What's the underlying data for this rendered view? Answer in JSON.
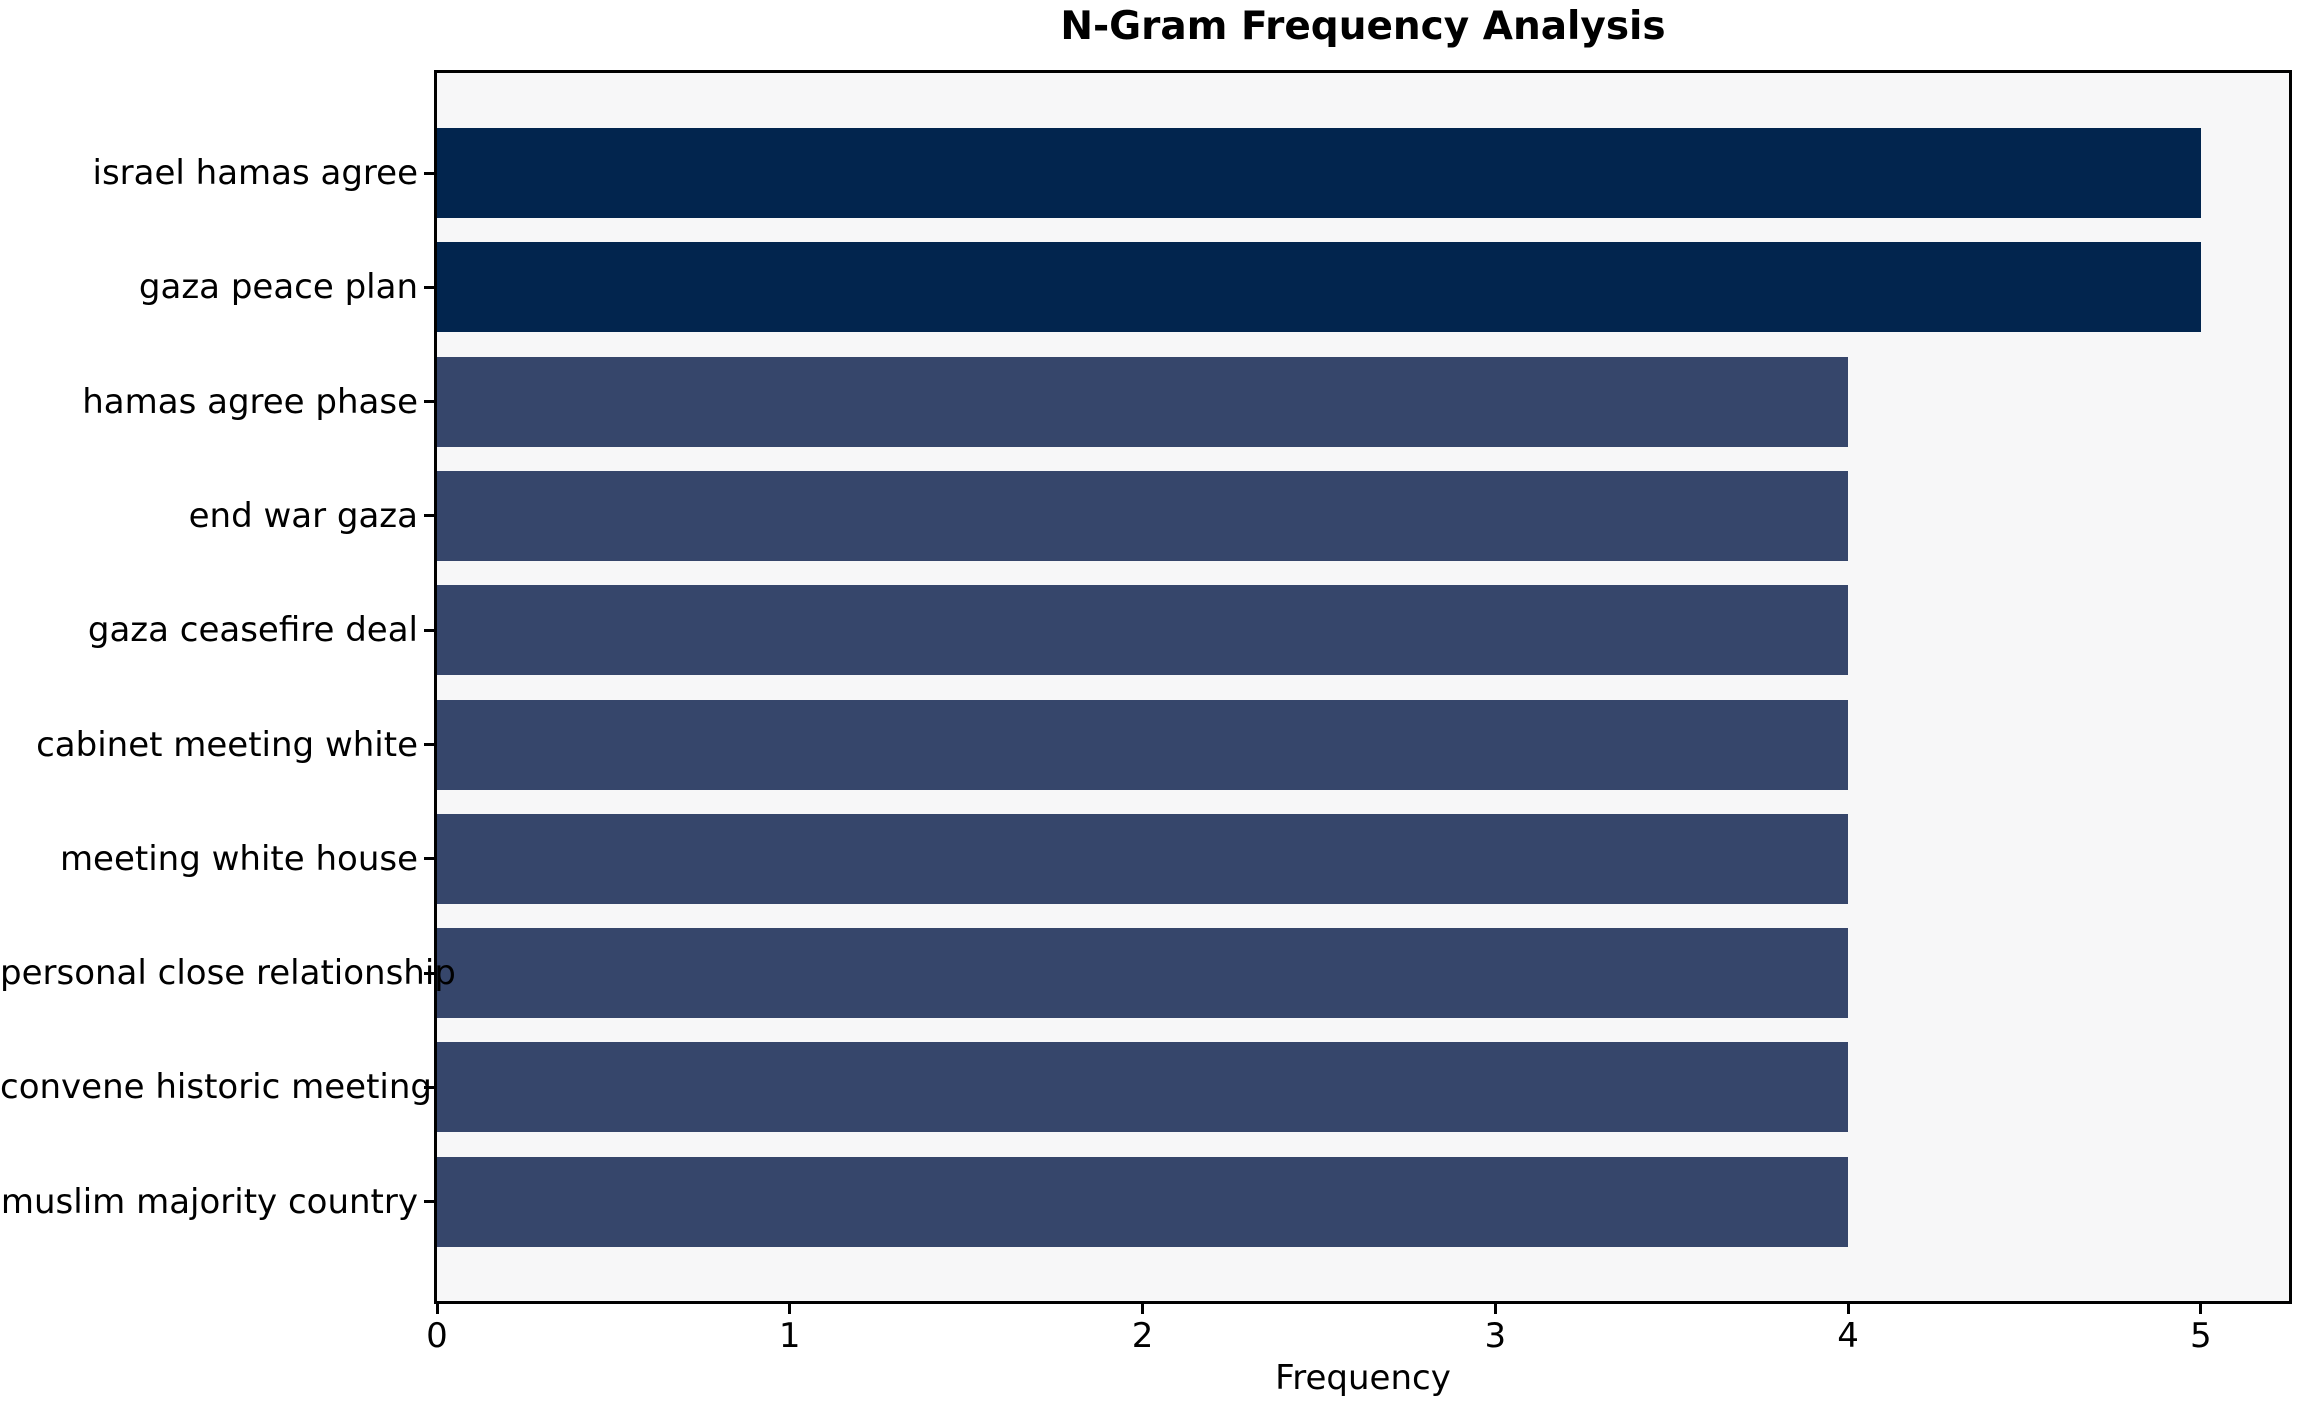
{
  "chart_data": {
    "type": "bar",
    "orientation": "horizontal",
    "title": "N-Gram Frequency Analysis",
    "xlabel": "Frequency",
    "ylabel": "",
    "categories": [
      "israel hamas agree",
      "gaza peace plan",
      "hamas agree phase",
      "end war gaza",
      "gaza ceasefire deal",
      "cabinet meeting white",
      "meeting white house",
      "personal close relationship",
      "convene historic meeting",
      "muslim majority country"
    ],
    "values": [
      5,
      5,
      4,
      4,
      4,
      4,
      4,
      4,
      4,
      4
    ],
    "bar_colors": [
      "#02254e",
      "#02254e",
      "#36466b",
      "#36466b",
      "#36466b",
      "#36466b",
      "#36466b",
      "#36466b",
      "#36466b",
      "#36466b"
    ],
    "x_ticks": [
      0,
      1,
      2,
      3,
      4,
      5
    ],
    "xlim": [
      0,
      5.25
    ],
    "grid": false,
    "legend": "none"
  },
  "colors": {
    "page_background": "#ffffff",
    "plot_background": "#f7f7f8",
    "spine": "#000000",
    "text": "#000000",
    "bar_high": "#02254e",
    "bar_normal": "#36466b"
  }
}
